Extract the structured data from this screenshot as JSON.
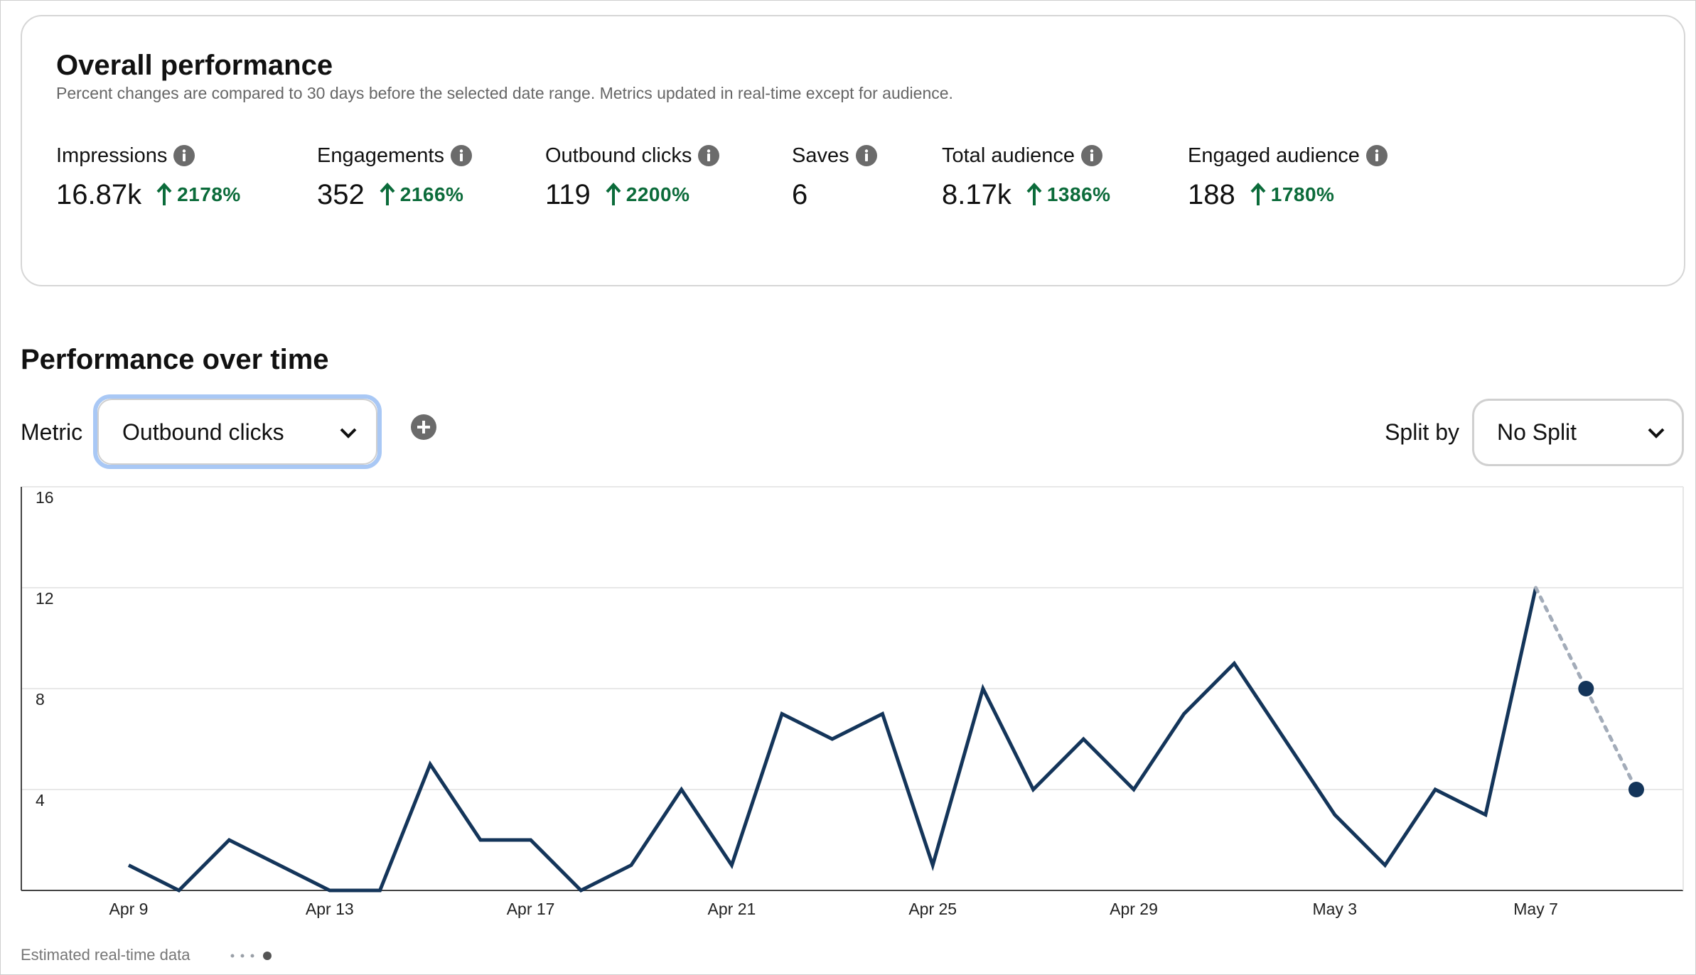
{
  "header": {
    "title": "Overall performance",
    "subtitle": "Percent changes are compared to 30 days before the selected date range. Metrics updated in real-time except for audience."
  },
  "metrics": [
    {
      "label": "Impressions",
      "value": "16.87k",
      "change": "2178%"
    },
    {
      "label": "Engagements",
      "value": "352",
      "change": "2166%"
    },
    {
      "label": "Outbound clicks",
      "value": "119",
      "change": "2200%"
    },
    {
      "label": "Saves",
      "value": "6"
    },
    {
      "label": "Total audience",
      "value": "8.17k",
      "change": "1386%"
    },
    {
      "label": "Engaged audience",
      "value": "188",
      "change": "1780%"
    }
  ],
  "section_title": "Performance over time",
  "controls": {
    "metric_label": "Metric",
    "metric_value": "Outbound clicks",
    "split_label": "Split by",
    "split_value": "No Split"
  },
  "chart_data": {
    "type": "line",
    "categories": [
      "Apr 9",
      null,
      null,
      null,
      "Apr 13",
      null,
      null,
      null,
      "Apr 17",
      null,
      null,
      null,
      "Apr 21",
      null,
      null,
      null,
      "Apr 25",
      null,
      null,
      null,
      "Apr 29",
      null,
      null,
      null,
      "May 3",
      null,
      null,
      null,
      "May 7",
      null,
      null
    ],
    "series": [
      {
        "color": "#14355a",
        "values": [
          1,
          0,
          2,
          1,
          0,
          0,
          5,
          2,
          2,
          0,
          1,
          4,
          1,
          7,
          6,
          7,
          1,
          8,
          4,
          6,
          4,
          7,
          9,
          6,
          3,
          1,
          4,
          3,
          12,
          null,
          null
        ]
      },
      {
        "name": "Estimated real-time data",
        "color": "#a3acb9",
        "point_color": "#14355a",
        "values": [
          null,
          null,
          null,
          null,
          null,
          null,
          null,
          null,
          null,
          null,
          null,
          null,
          null,
          null,
          null,
          null,
          null,
          null,
          null,
          null,
          null,
          null,
          null,
          null,
          null,
          null,
          null,
          null,
          null,
          8,
          4
        ]
      }
    ],
    "ylim": [
      0,
      16
    ],
    "yticks": [
      4,
      8,
      12,
      16
    ],
    "grid": true
  }
}
